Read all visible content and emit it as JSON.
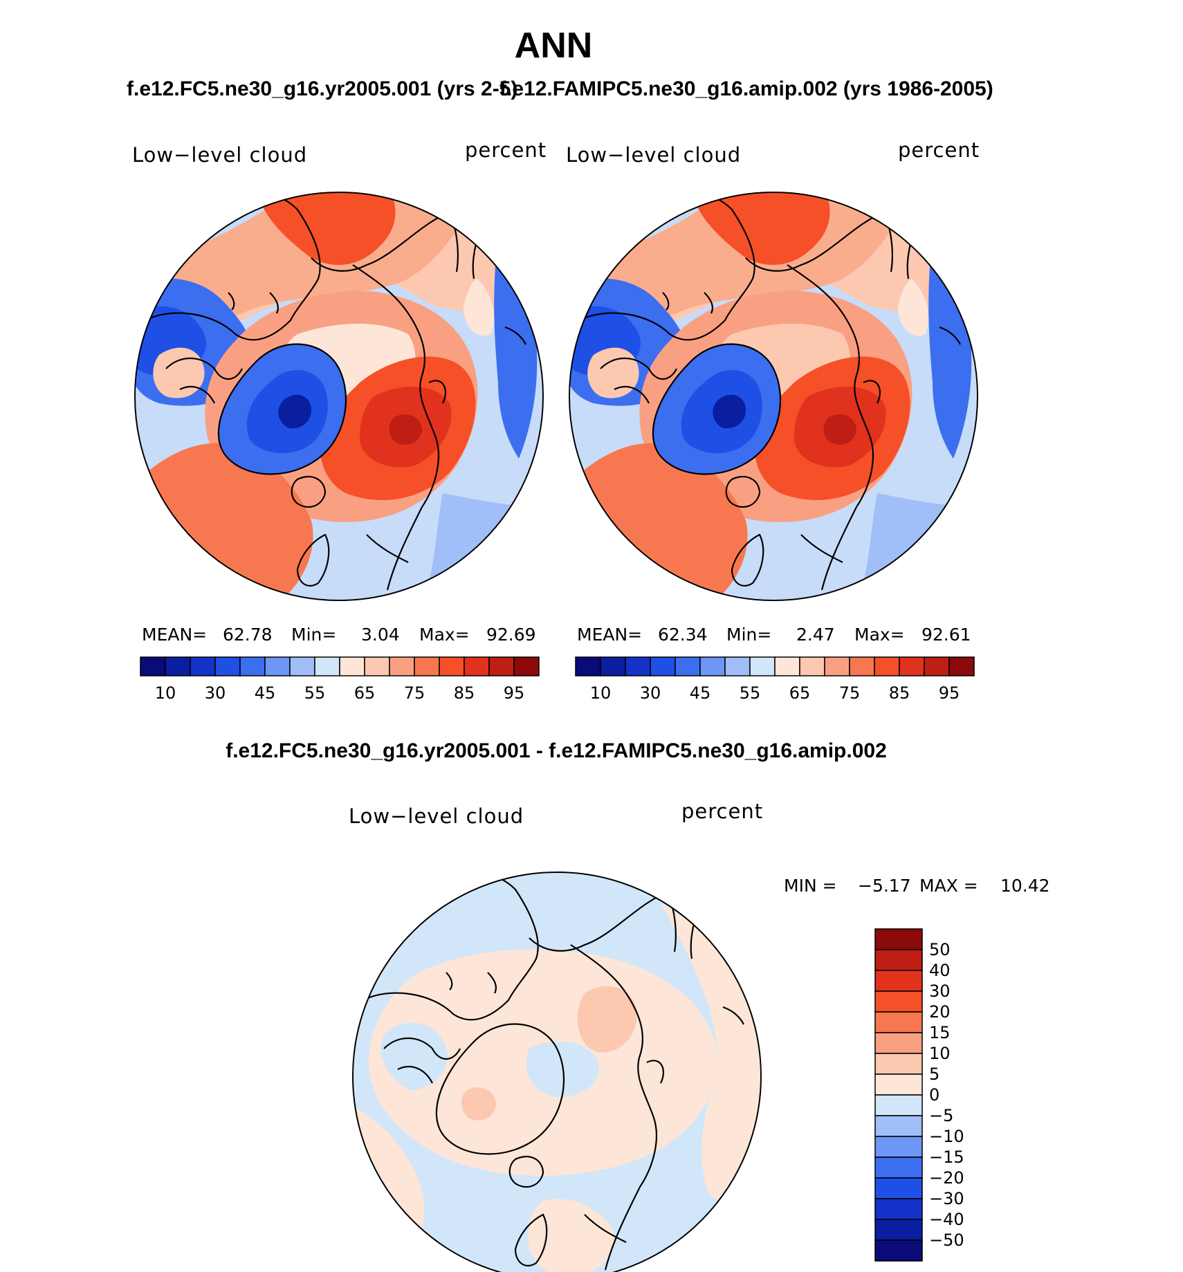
{
  "title": "ANN",
  "subtitle_left": "f.e12.FC5.ne30_g16.yr2005.001 (yrs 2-5)",
  "subtitle_right": "f.e12.FAMIPC5.ne30_g16.amip.002 (yrs 1986-2005)",
  "diff_title": "f.e12.FC5.ne30_g16.yr2005.001 - f.e12.FAMIPC5.ne30_g16.amip.002",
  "chart_data": [
    {
      "type": "heatmap",
      "projection": "polar-stereographic (north)",
      "title": "f.e12.FC5.ne30_g16.yr2005.001 (yrs 2-5)",
      "variable": "Low−level cloud",
      "units": "percent",
      "stats": {
        "mean_label": "MEAN=",
        "mean": "62.78",
        "min_label": "Min=",
        "min": "3.04",
        "max_label": "Max=",
        "max": "92.69"
      },
      "levels": [
        10,
        20,
        30,
        40,
        45,
        50,
        55,
        60,
        65,
        70,
        75,
        80,
        85,
        90,
        95
      ],
      "colorbar_labels": [
        "10",
        "30",
        "45",
        "55",
        "65",
        "75",
        "85",
        "95"
      ],
      "colors": [
        "#0a0a78",
        "#0a1ea0",
        "#1432c8",
        "#1e50e6",
        "#3c6ef0",
        "#6e96f5",
        "#a0bef8",
        "#d2e6fa",
        "#fde6d7",
        "#fcc8b0",
        "#faa082",
        "#f77850",
        "#f55028",
        "#e1321e",
        "#be1e14",
        "#8c0a0a"
      ]
    },
    {
      "type": "heatmap",
      "projection": "polar-stereographic (north)",
      "title": "f.e12.FAMIPC5.ne30_g16.amip.002 (yrs 1986-2005)",
      "variable": "Low−level cloud",
      "units": "percent",
      "stats": {
        "mean_label": "MEAN=",
        "mean": "62.34",
        "min_label": "Min=",
        "min": "2.47",
        "max_label": "Max=",
        "max": "92.61"
      },
      "levels": [
        10,
        20,
        30,
        40,
        45,
        50,
        55,
        60,
        65,
        70,
        75,
        80,
        85,
        90,
        95
      ],
      "colorbar_labels": [
        "10",
        "30",
        "45",
        "55",
        "65",
        "75",
        "85",
        "95"
      ],
      "colors": [
        "#0a0a78",
        "#0a1ea0",
        "#1432c8",
        "#1e50e6",
        "#3c6ef0",
        "#6e96f5",
        "#a0bef8",
        "#d2e6fa",
        "#fde6d7",
        "#fcc8b0",
        "#faa082",
        "#f77850",
        "#f55028",
        "#e1321e",
        "#be1e14",
        "#8c0a0a"
      ]
    },
    {
      "type": "heatmap",
      "projection": "polar-stereographic (north)",
      "title": "f.e12.FC5.ne30_g16.yr2005.001 - f.e12.FAMIPC5.ne30_g16.amip.002",
      "variable": "Low−level cloud",
      "units": "percent",
      "stats": {
        "min_label": "MIN =",
        "min": "−5.17",
        "max_label": "MAX =",
        "max": "10.42"
      },
      "levels": [
        -50,
        -40,
        -30,
        -20,
        -15,
        -10,
        -5,
        0,
        5,
        10,
        15,
        20,
        30,
        40,
        50
      ],
      "colorbar_labels": [
        "50",
        "40",
        "30",
        "20",
        "15",
        "10",
        "5",
        "0",
        "−5",
        "−10",
        "−15",
        "−20",
        "−30",
        "−40",
        "−50"
      ],
      "colors": [
        "#8c0a0a",
        "#be1e14",
        "#e1321e",
        "#f55028",
        "#f77850",
        "#faa082",
        "#fcc8b0",
        "#fde6d7",
        "#d2e6fa",
        "#a0bef8",
        "#6e96f5",
        "#3c6ef0",
        "#1e50e6",
        "#1432c8",
        "#0a1ea0",
        "#0a0a78"
      ]
    }
  ]
}
